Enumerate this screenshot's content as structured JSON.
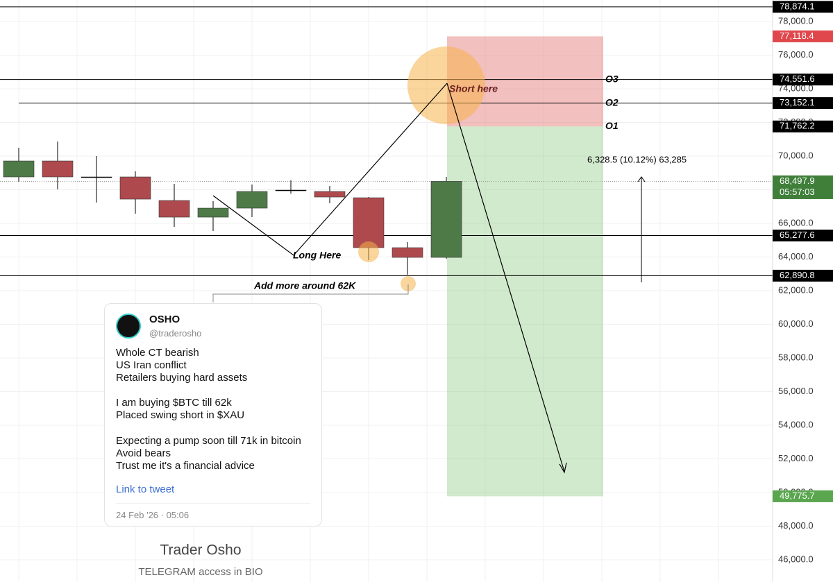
{
  "chart_data": {
    "type": "candlestick",
    "categories": [
      null,
      null,
      null,
      null,
      null,
      null,
      null,
      null,
      null,
      null,
      null,
      null
    ],
    "open": [
      68763,
      69711,
      68763,
      68763,
      67360,
      66371,
      66907,
      67979,
      67897,
      67525,
      64556,
      63978
    ],
    "high": [
      70495,
      70866,
      70000,
      69092,
      68350,
      67319,
      68309,
      68556,
      68227,
      67567,
      64886,
      68763
    ],
    "low": [
      68474,
      68020,
      67237,
      66577,
      65794,
      65546,
      66371,
      67763,
      67195,
      63814,
      62948,
      63897
    ],
    "close": [
      69711,
      68763,
      68763,
      67443,
      66371,
      66907,
      67897,
      67979,
      67567,
      64556,
      63978,
      68497.9
    ],
    "up_color": "#4e7a48",
    "down_color": "#ae4a4e",
    "ylim": [
      44680,
      79280
    ],
    "yticks": [
      {
        "value": 46000,
        "label": "46,000.0"
      },
      {
        "value": 48000,
        "label": "48,000.0"
      },
      {
        "value": 50000,
        "label": "50,000.0"
      },
      {
        "value": 52000,
        "label": "52,000.0"
      },
      {
        "value": 54000,
        "label": "54,000.0"
      },
      {
        "value": 56000,
        "label": "56,000.0"
      },
      {
        "value": 58000,
        "label": "58,000.0"
      },
      {
        "value": 60000,
        "label": "60,000.0"
      },
      {
        "value": 62000,
        "label": "62,000.0"
      },
      {
        "value": 64000,
        "label": "64,000.0"
      },
      {
        "value": 66000,
        "label": "66,000.0"
      },
      {
        "value": 68000,
        "label": "68,000.0"
      },
      {
        "value": 70000,
        "label": "70,000.0"
      },
      {
        "value": 72000,
        "label": "72,000.0"
      },
      {
        "value": 74000,
        "label": "74,000.0"
      },
      {
        "value": 76000,
        "label": "76,000.0"
      },
      {
        "value": 78000,
        "label": "78,000.0"
      }
    ],
    "grid": true,
    "price_levels": [
      {
        "value": 78874.1,
        "label": "78,874.1",
        "color": "#000000"
      },
      {
        "value": 77118.4,
        "label": "77,118.4",
        "color": "#e0474c"
      },
      {
        "value": 74551.6,
        "label": "74,551.6",
        "color": "#000000"
      },
      {
        "value": 73152.1,
        "label": "73,152.1",
        "color": "#000000"
      },
      {
        "value": 71762.2,
        "label": "71,762.2",
        "color": "#000000"
      },
      {
        "value": 68497.9,
        "label": "68,497.9",
        "color": "#3f7f3a"
      },
      {
        "value": 65277.6,
        "label": "65,277.6",
        "color": "#000000"
      },
      {
        "value": 62890.8,
        "label": "62,890.8",
        "color": "#000000"
      },
      {
        "value": 49775.7,
        "label": "49,775.7",
        "color": "#5aa64f"
      }
    ],
    "countdown": "05:57:03",
    "level_names": [
      "O3",
      "O2",
      "O1"
    ],
    "annotations": [
      "Short here",
      "Long Here",
      "Add more around 62K",
      "6,328.5 (10.12%) 63,285"
    ],
    "tweet": {
      "name": "OSHO",
      "handle": "@traderosho",
      "lines": [
        "Whole CT bearish",
        "US Iran conflict",
        "Retailers buying hard assets",
        "I am buying $BTC till 62k",
        "Placed swing short in $XAU",
        "Expecting a pump soon till 71k in bitcoin",
        "Avoid bears",
        "Trust me it's a financial advice"
      ],
      "link": "Link to tweet",
      "date": "24 Feb '26 · 05:06"
    },
    "footer": {
      "title": "Trader Osho",
      "subtitle": "TELEGRAM access in BIO"
    }
  }
}
